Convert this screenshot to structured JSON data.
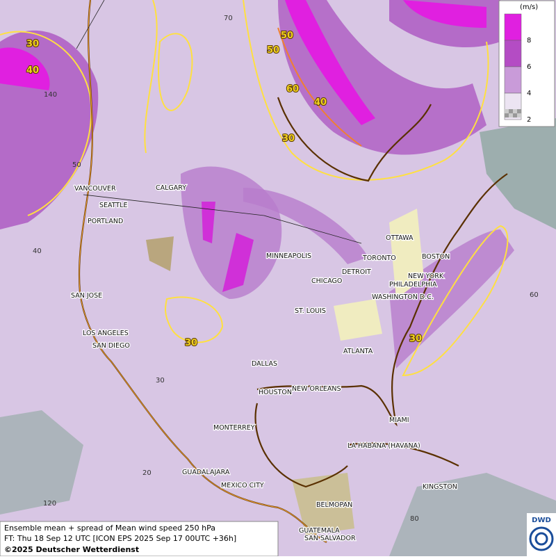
{
  "map": {
    "cities": [
      "VANCOUVER",
      "CALGARY",
      "SEATTLE",
      "PORTLAND",
      "MINNEAPOLIS",
      "OTTAWA",
      "TORONTO",
      "DETROIT",
      "CHICAGO",
      "BOSTON",
      "NEW YORK",
      "PHILADELPHIA",
      "WASHINGTON D.C.",
      "SAN JOSE",
      "ST. LOUIS",
      "LOS ANGELES",
      "SAN DIEGO",
      "ATLANTA",
      "DALLAS",
      "HOUSTON",
      "NEW ORLEANS",
      "MIAMI",
      "MONTERREY",
      "LA HABANA (HAVANA)",
      "GUADALAJARA",
      "MEXICO CITY",
      "KINGSTON",
      "BELMOPAN",
      "GUATEMALA",
      "SAN SALVADOR"
    ],
    "grid_labels": [
      "70",
      "140",
      "50",
      "40",
      "30",
      "20",
      "120",
      "60",
      "80"
    ],
    "contour_labels": [
      "30",
      "40",
      "50",
      "50",
      "60",
      "40",
      "30",
      "30",
      "30"
    ]
  },
  "legend": {
    "unit": "(m/s)",
    "levels": [
      {
        "label": "8",
        "color": "#e020e0"
      },
      {
        "label": "6",
        "color": "#b44cc4"
      },
      {
        "label": "4",
        "color": "#c99bd9"
      },
      {
        "label": "2",
        "color": "#ece4f2"
      }
    ]
  },
  "footer": {
    "line1": "Ensemble mean + spread of Mean wind speed 250 hPa",
    "line2": "FT: Thu 18 Sep 12 UTC [ICON EPS 2025 Sep 17 00UTC +36h]",
    "line3": "©2025 Deutscher Wetterdienst"
  },
  "logo": "DWD"
}
